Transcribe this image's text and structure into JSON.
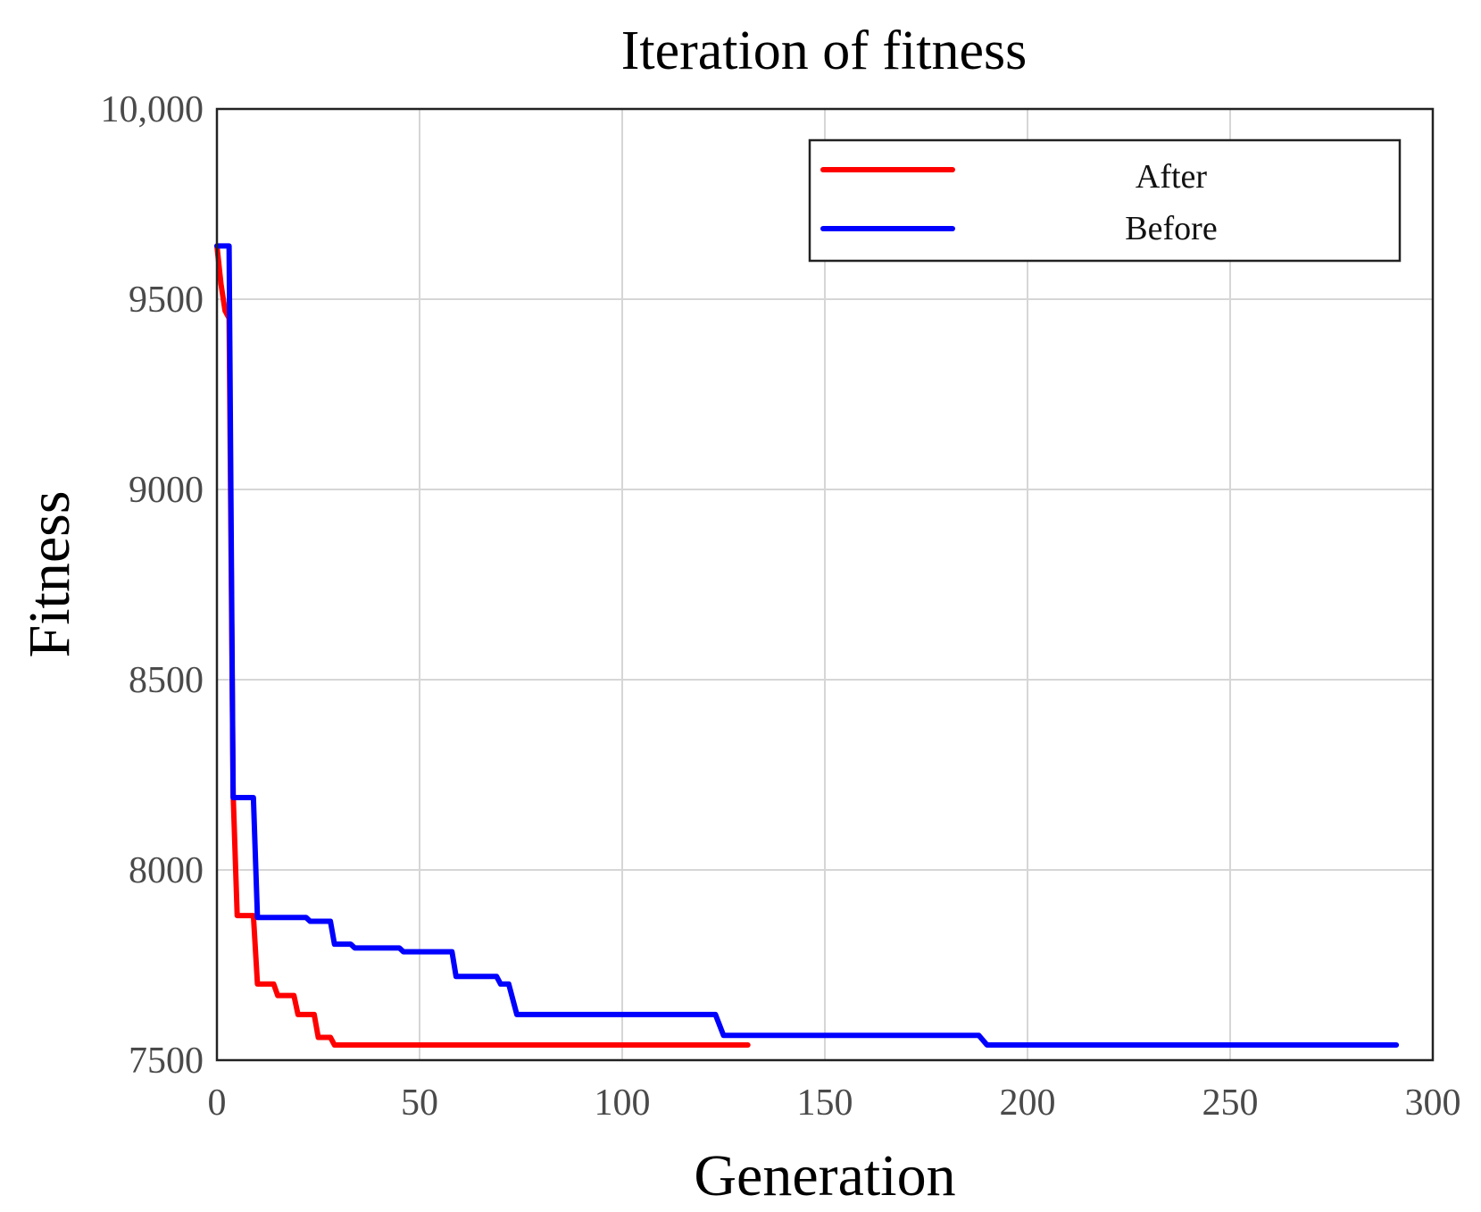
{
  "chart_data": {
    "type": "line",
    "title": "Iteration of fitness",
    "xlabel": "Generation",
    "ylabel": "Fitness",
    "xlim": [
      0,
      300
    ],
    "ylim": [
      7500,
      10000
    ],
    "grid": true,
    "legend_position": "top-right",
    "x_ticks": [
      0,
      50,
      100,
      150,
      200,
      250,
      300
    ],
    "x_tick_labels": [
      "0",
      "50",
      "100",
      "150",
      "200",
      "250",
      "300"
    ],
    "y_ticks": [
      7500,
      8000,
      8500,
      9000,
      9500,
      10000
    ],
    "y_tick_labels": [
      "7500",
      "8000",
      "8500",
      "9000",
      "9500",
      "10,000"
    ],
    "series": [
      {
        "name": "After",
        "color": "#ff0000",
        "points": [
          [
            0,
            9640
          ],
          [
            1,
            9540
          ],
          [
            2,
            9470
          ],
          [
            3,
            9450
          ],
          [
            4,
            8200
          ],
          [
            5,
            7880
          ],
          [
            9,
            7880
          ],
          [
            10,
            7700
          ],
          [
            14,
            7700
          ],
          [
            15,
            7670
          ],
          [
            19,
            7670
          ],
          [
            20,
            7620
          ],
          [
            24,
            7620
          ],
          [
            25,
            7560
          ],
          [
            28,
            7560
          ],
          [
            29,
            7540
          ],
          [
            131,
            7540
          ]
        ]
      },
      {
        "name": "Before",
        "color": "#0000ff",
        "points": [
          [
            0,
            9640
          ],
          [
            3,
            9640
          ],
          [
            4,
            8190
          ],
          [
            9,
            8190
          ],
          [
            10,
            7875
          ],
          [
            22,
            7875
          ],
          [
            23,
            7865
          ],
          [
            28,
            7865
          ],
          [
            29,
            7805
          ],
          [
            33,
            7805
          ],
          [
            34,
            7795
          ],
          [
            45,
            7795
          ],
          [
            46,
            7785
          ],
          [
            58,
            7785
          ],
          [
            59,
            7720
          ],
          [
            69,
            7720
          ],
          [
            70,
            7700
          ],
          [
            72,
            7700
          ],
          [
            74,
            7620
          ],
          [
            123,
            7620
          ],
          [
            125,
            7565
          ],
          [
            188,
            7565
          ],
          [
            190,
            7540
          ],
          [
            291,
            7540
          ]
        ]
      }
    ]
  }
}
